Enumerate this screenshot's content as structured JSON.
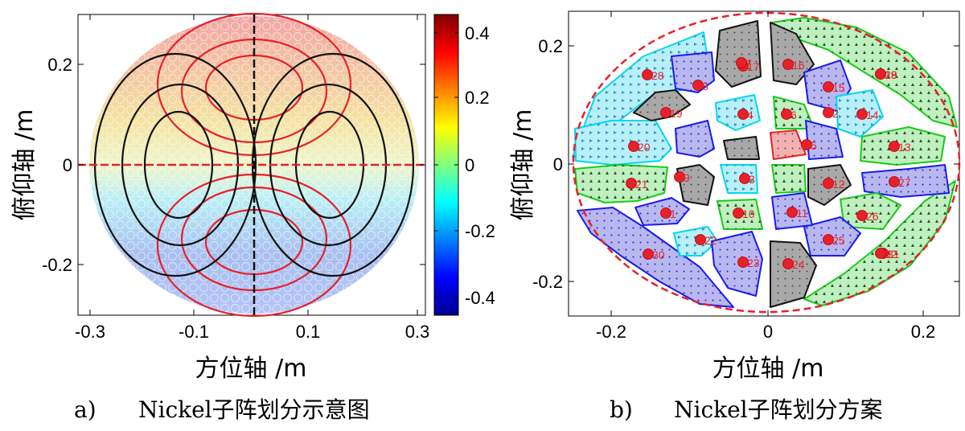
{
  "panel_a": {
    "caption_label": "a)",
    "caption": "Nickel子阵划分示意图",
    "xlabel": "方位轴 /m",
    "ylabel": "俯仰轴 /m",
    "x_ticks": [
      "-0.3",
      "-0.1",
      "0.1",
      "0.3"
    ],
    "y_ticks": [
      "0.2",
      "0",
      "-0.2"
    ],
    "colorbar_ticks": [
      "0.4",
      "0.2",
      "0",
      "-0.2",
      "-0.4"
    ],
    "colorbar_range": [
      -0.47,
      0.47
    ],
    "colormap": "jet",
    "contour_colors": {
      "sum_pattern": "#e8202a",
      "difference_pattern": "#111111"
    },
    "colors": {
      "red_line": "#e8202a",
      "black_line": "#111111"
    }
  },
  "panel_b": {
    "caption_label": "b)",
    "caption": "Nickel子阵划分方案",
    "xlabel": "方位轴 /m",
    "ylabel": "俯仰轴 /m",
    "x_ticks": [
      "-0.2",
      "0",
      "0.2"
    ],
    "y_ticks": [
      "0.2",
      "0",
      "-0.2"
    ],
    "subarray_labels": [
      "1",
      "2",
      "3",
      "4",
      "5",
      "6",
      "7",
      "8",
      "9",
      "10",
      "11",
      "12",
      "13",
      "14",
      "15",
      "16",
      "17",
      "18",
      "19",
      "20",
      "21",
      "22",
      "23",
      "24",
      "25",
      "26",
      "27",
      "28",
      "29",
      "30",
      "31",
      "32"
    ],
    "colors": {
      "cyan_fill": "#b8f0f8",
      "cyan_edge": "#00d8f0",
      "blue_fill": "#b8b8ee",
      "blue_edge": "#1a1aee",
      "green_fill": "#bff0bf",
      "green_edge": "#18cc18",
      "gray_fill": "#a8a8a8",
      "gray_edge": "#111111",
      "red_fill": "#f4b0b0",
      "red_edge": "#e8202a",
      "marker": "#e8202a",
      "boundary": "#e8202a"
    }
  }
}
